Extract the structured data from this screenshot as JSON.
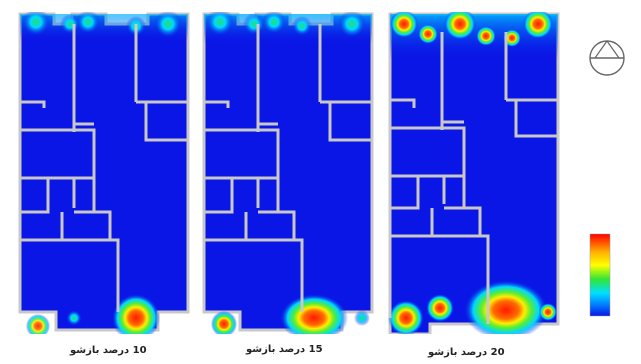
{
  "panels": [
    {
      "id": "p10",
      "caption": "10 درصد بازشو"
    },
    {
      "id": "p15",
      "caption": "15 درصد بازشو"
    },
    {
      "id": "p20",
      "caption": "20 درصد بازشو"
    }
  ],
  "legend": {
    "left_scale": [
      "",
      "",
      "",
      "",
      "",
      ""
    ],
    "right_scale": [
      "",
      "",
      "",
      "",
      "",
      ""
    ]
  },
  "colors": {
    "background_field": "#0a16e6",
    "walls": "#c8c8c8",
    "hot": "#ff1a00",
    "warm": "#ffff00",
    "mid": "#22e06a",
    "cool": "#00c8ff"
  }
}
